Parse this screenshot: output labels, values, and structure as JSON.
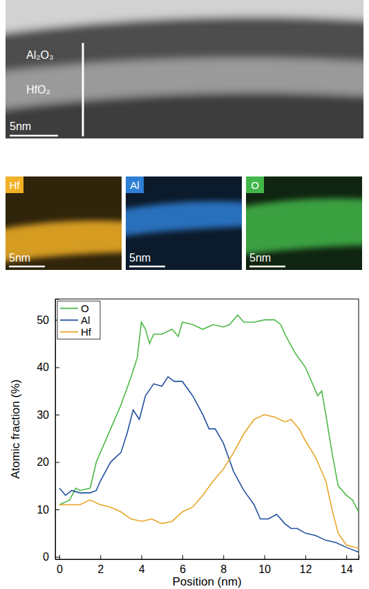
{
  "micrograph": {
    "labels": [
      "Al₂O₃",
      "HfO₂"
    ],
    "scale_bar": "5nm"
  },
  "maps": [
    {
      "label": "Hf",
      "color": "#f2b126",
      "scale_bar": "5nm"
    },
    {
      "label": "Al",
      "color": "#2f7fd6",
      "scale_bar": "5nm"
    },
    {
      "label": "O",
      "color": "#43b649",
      "scale_bar": "5nm"
    }
  ],
  "chart_data": {
    "type": "line",
    "x_label": "Position (nm)",
    "y_label": "Atomic fraction (%)",
    "xlim": [
      -0.2,
      14.6
    ],
    "ylim": [
      -0.5,
      54.4
    ],
    "xticks": [
      0,
      2,
      4,
      6,
      8,
      10,
      12,
      14
    ],
    "yticks": [
      0,
      10,
      20,
      30,
      40,
      50
    ],
    "legend": "upper left",
    "series": [
      {
        "name": "O",
        "color": "#4cb847",
        "x": [
          0,
          0.5,
          0.8,
          1,
          1.5,
          1.8,
          2,
          2.5,
          3,
          3.5,
          3.8,
          4,
          4.2,
          4.4,
          4.6,
          5,
          5.5,
          5.8,
          6,
          6.5,
          7,
          7.5,
          8,
          8.3,
          8.7,
          9,
          9.5,
          10,
          10.5,
          10.8,
          11,
          11.5,
          12,
          12.4,
          12.6,
          12.8,
          13,
          13.3,
          13.6,
          14,
          14.3,
          14.6
        ],
        "values": [
          11,
          12,
          14.5,
          14,
          14.5,
          20,
          22,
          27,
          32,
          38,
          42,
          49.5,
          48,
          45,
          47,
          47,
          48,
          46.5,
          49.5,
          49,
          48,
          49,
          48.5,
          49,
          51,
          49.5,
          49.5,
          50,
          50,
          49,
          47,
          43,
          40,
          36,
          34,
          35,
          30,
          22,
          15,
          13,
          12,
          9.5
        ]
      },
      {
        "name": "Al",
        "color": "#23509e",
        "x": [
          0,
          0.3,
          0.6,
          1,
          1.5,
          1.8,
          2,
          2.5,
          3,
          3.3,
          3.6,
          3.9,
          4.2,
          4.6,
          5,
          5.3,
          5.6,
          6,
          6.5,
          7,
          7.3,
          7.6,
          8,
          8.5,
          9,
          9.5,
          9.8,
          10.2,
          10.6,
          11,
          11.3,
          11.6,
          12,
          12.5,
          13,
          13.5,
          14,
          14.6
        ],
        "values": [
          14.5,
          13,
          14,
          13.5,
          13.5,
          14,
          16,
          20,
          22,
          26,
          31,
          29,
          34,
          36.5,
          36,
          38,
          37,
          37,
          34,
          30,
          27,
          27,
          24,
          18,
          14,
          11,
          8,
          8,
          9,
          7,
          6,
          6,
          5,
          4.5,
          3.5,
          3,
          2,
          1
        ]
      },
      {
        "name": "Hf",
        "color": "#e8a526",
        "x": [
          0,
          0.5,
          1,
          1.5,
          2,
          2.5,
          3,
          3.5,
          4,
          4.5,
          5,
          5.5,
          6,
          6.5,
          7,
          7.5,
          8,
          8.5,
          9,
          9.5,
          10,
          10.5,
          11,
          11.3,
          11.7,
          12,
          12.5,
          13,
          13.3,
          13.6,
          14,
          14.6
        ],
        "values": [
          11,
          11,
          11,
          12,
          11,
          10.5,
          9.5,
          8,
          7.5,
          8,
          7,
          7.5,
          9.5,
          10.5,
          13,
          16,
          18.5,
          22,
          26,
          29,
          30,
          29.5,
          28.5,
          29,
          27,
          24.5,
          21,
          16,
          10,
          5,
          2.5,
          1.8
        ]
      }
    ]
  }
}
